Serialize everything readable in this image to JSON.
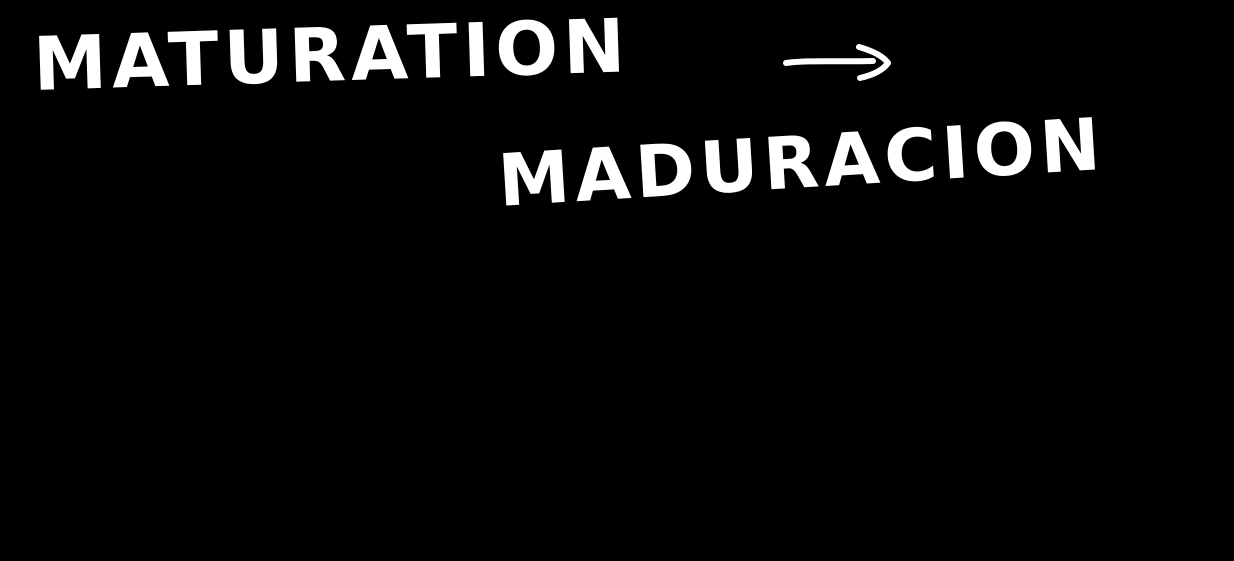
{
  "board": {
    "background": "#000000",
    "ink_color": "#ffffff"
  },
  "translation": {
    "source_word": "MATURATION",
    "target_word": "MADURACION",
    "arrow_icon": "right-arrow-icon"
  }
}
